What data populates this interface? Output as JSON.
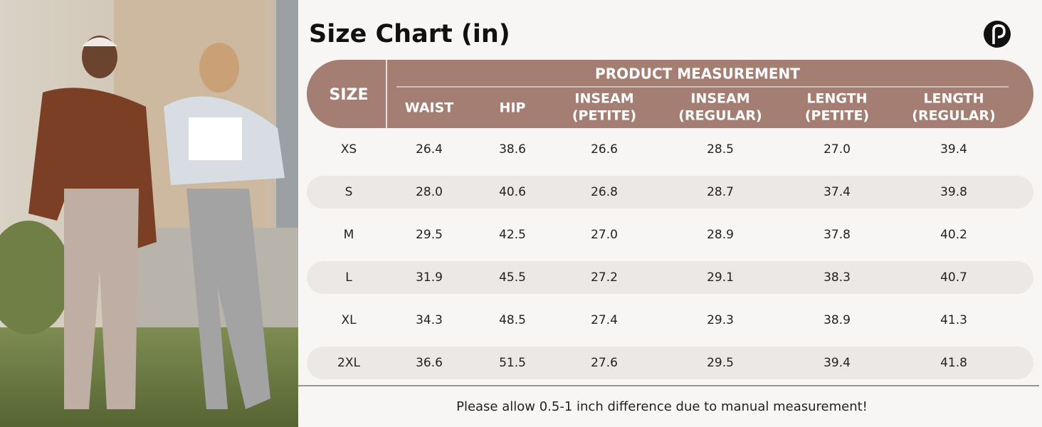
{
  "title": "Size Chart (in)",
  "table": {
    "size_header": "SIZE",
    "group_header": "PRODUCT MEASUREMENT",
    "columns": [
      [
        "WAIST"
      ],
      [
        "HIP"
      ],
      [
        "INSEAM",
        "(PETITE)"
      ],
      [
        "INSEAM",
        "(REGULAR)"
      ],
      [
        "LENGTH",
        "(PETITE)"
      ],
      [
        "LENGTH",
        "(REGULAR)"
      ]
    ],
    "rows": [
      [
        "XS",
        "26.4",
        "38.6",
        "26.6",
        "28.5",
        "27.0",
        "39.4"
      ],
      [
        "S",
        "28.0",
        "40.6",
        "26.8",
        "28.7",
        "37.4",
        "39.8"
      ],
      [
        "M",
        "29.5",
        "42.5",
        "27.0",
        "28.9",
        "37.8",
        "40.2"
      ],
      [
        "L",
        "31.9",
        "45.5",
        "27.2",
        "29.1",
        "38.3",
        "40.7"
      ],
      [
        "XL",
        "34.3",
        "48.5",
        "27.4",
        "29.3",
        "38.9",
        "41.3"
      ],
      [
        "2XL",
        "36.6",
        "51.5",
        "27.6",
        "29.5",
        "39.4",
        "41.8"
      ]
    ]
  },
  "footer": "Please allow 0.5-1 inch difference due to manual measurement!"
}
